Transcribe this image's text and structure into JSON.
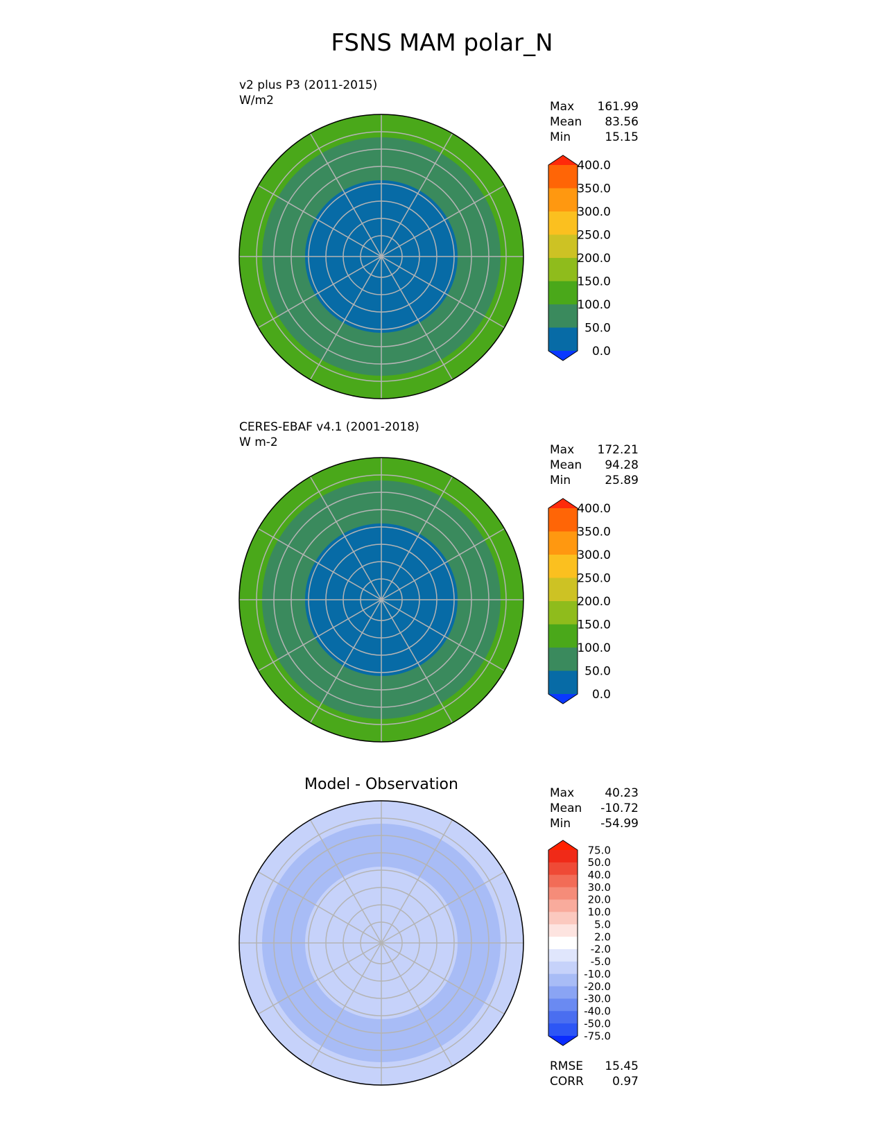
{
  "figure_title": "FSNS MAM polar_N",
  "chart_data": [
    {
      "type": "heatmap",
      "projection": "north-polar-stereographic",
      "title": "v2 plus P3 (2011-2015)",
      "units": "W/m2",
      "stats": [
        {
          "label": "Max",
          "value": "161.99"
        },
        {
          "label": "Mean",
          "value": "83.56"
        },
        {
          "label": "Min",
          "value": "15.15"
        }
      ],
      "colorbar": {
        "levels": [
          "0.0",
          "50.0",
          "100.0",
          "150.0",
          "200.0",
          "250.0",
          "300.0",
          "350.0",
          "400.0"
        ],
        "colors": [
          "#0a38ff",
          "#076ba6",
          "#3a8a5d",
          "#4aa81a",
          "#8fbc1c",
          "#cdc224",
          "#fbc01f",
          "#ff9810",
          "#ff6506",
          "#ff2a0a"
        ],
        "extend": "both"
      },
      "field": {
        "inner_value": 35,
        "ring_value": 80,
        "outer_value": 125
      }
    },
    {
      "type": "heatmap",
      "projection": "north-polar-stereographic",
      "title": "CERES-EBAF v4.1 (2001-2018)",
      "units": "W m-2",
      "stats": [
        {
          "label": "Max",
          "value": "172.21"
        },
        {
          "label": "Mean",
          "value": "94.28"
        },
        {
          "label": "Min",
          "value": "25.89"
        }
      ],
      "colorbar": {
        "levels": [
          "0.0",
          "50.0",
          "100.0",
          "150.0",
          "200.0",
          "250.0",
          "300.0",
          "350.0",
          "400.0"
        ],
        "colors": [
          "#0a38ff",
          "#076ba6",
          "#3a8a5d",
          "#4aa81a",
          "#8fbc1c",
          "#cdc224",
          "#fbc01f",
          "#ff9810",
          "#ff6506",
          "#ff2a0a"
        ],
        "extend": "both"
      },
      "field": {
        "inner_value": 40,
        "ring_value": 85,
        "outer_value": 130
      }
    },
    {
      "type": "heatmap",
      "projection": "north-polar-stereographic",
      "title": "Model - Observation",
      "units": "",
      "stats": [
        {
          "label": "Max",
          "value": "40.23"
        },
        {
          "label": "Mean",
          "value": "-10.72"
        },
        {
          "label": "Min",
          "value": "-54.99"
        }
      ],
      "metrics": [
        {
          "label": "RMSE",
          "value": "15.45"
        },
        {
          "label": "CORR",
          "value": "0.97"
        }
      ],
      "colorbar": {
        "levels": [
          "-75.0",
          "-50.0",
          "-40.0",
          "-30.0",
          "-20.0",
          "-10.0",
          "-5.0",
          "-2.0",
          "2.0",
          "5.0",
          "10.0",
          "20.0",
          "30.0",
          "40.0",
          "50.0",
          "75.0"
        ],
        "colors": [
          "#0a2cff",
          "#2d56f5",
          "#4a6ef0",
          "#6a8af2",
          "#8aa4f4",
          "#a8bcf6",
          "#c6d2fa",
          "#e0e6fc",
          "#ffffff",
          "#fde4e0",
          "#fbc9bf",
          "#f9ab9c",
          "#f58c79",
          "#f26c57",
          "#ef4a36",
          "#f02a18",
          "#ff2200"
        ],
        "extend": "both"
      },
      "field": {
        "inner_value": -8,
        "ring_value": -12,
        "outer_value": -10
      }
    }
  ]
}
